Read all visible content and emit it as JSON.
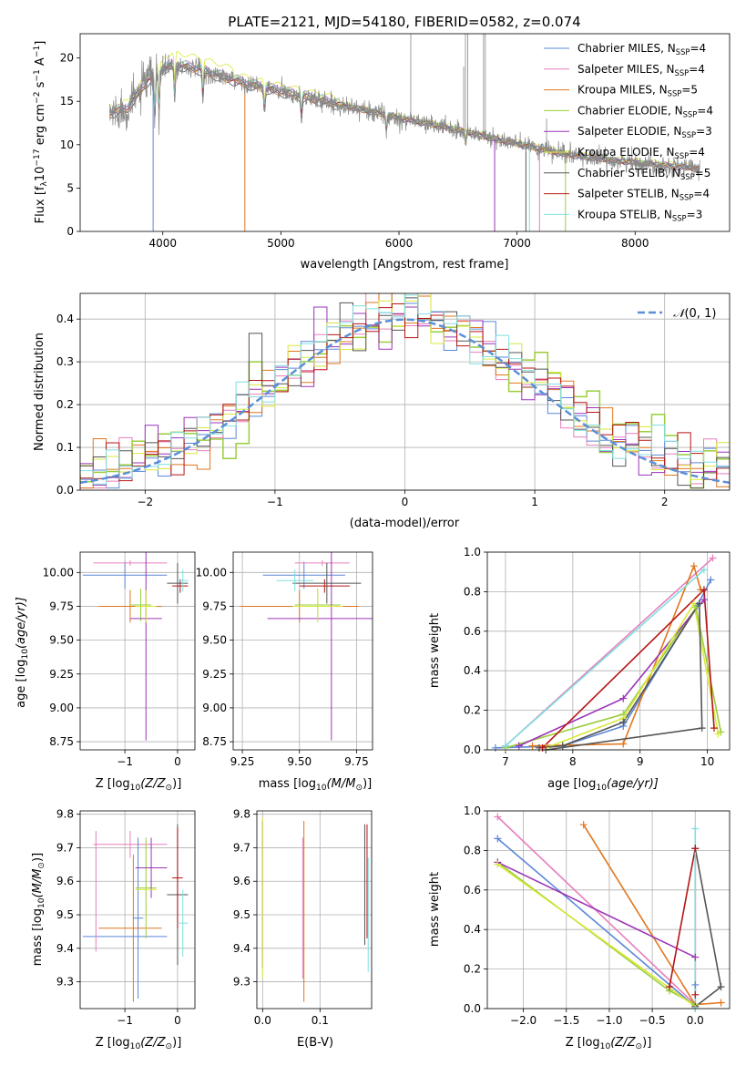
{
  "colors": {
    "Chabrier MILES": "#5a87d8",
    "Salpeter MILES": "#e77fbd",
    "Kroupa MILES": "#e0761f",
    "Chabrier ELODIE": "#9ace3c",
    "Salpeter ELODIE": "#9b34b8",
    "Kroupa ELODIE": "#d9e93a",
    "Chabrier STELIB": "#555555",
    "Salpeter STELIB": "#b81414",
    "Kroupa STELIB": "#80dfe0",
    "gauss": "#5b8fd8",
    "data_spectrum": "#888888"
  },
  "chart_data": [
    {
      "id": "spectrum",
      "type": "line",
      "title": "PLATE=2121, MJD=54180, FIBERID=0582, z=0.074",
      "xlabel": "wavelength [Angstrom, rest frame]",
      "ylabel_parts": [
        "Flux [f",
        "λ",
        "10",
        "−17",
        " erg cm",
        "−2",
        " s",
        "−1",
        " A",
        "−1",
        "]"
      ],
      "xlim": [
        3300,
        8800
      ],
      "ylim": [
        0,
        22.8
      ],
      "xticks": [
        4000,
        5000,
        6000,
        7000,
        8000
      ],
      "yticks": [
        0,
        5,
        10,
        15,
        20
      ],
      "grid": false,
      "legend_position": "upper right",
      "legend": [
        {
          "model": "Chabrier MILES",
          "n": "4"
        },
        {
          "model": "Salpeter MILES",
          "n": "4"
        },
        {
          "model": "Kroupa MILES",
          "n": "5"
        },
        {
          "model": "Chabrier ELODIE",
          "n": "4"
        },
        {
          "model": "Salpeter ELODIE",
          "n": "3"
        },
        {
          "model": "Kroupa ELODIE",
          "n": "4"
        },
        {
          "model": "Chabrier STELIB",
          "n": "5"
        },
        {
          "model": "Salpeter STELIB",
          "n": "4"
        },
        {
          "model": "Kroupa STELIB",
          "n": "3"
        }
      ],
      "legend_label_format": "N",
      "legend_label_sub": "SSP",
      "continuum": [
        [
          3550,
          13.6
        ],
        [
          3700,
          14.2
        ],
        [
          3850,
          17.0
        ],
        [
          3950,
          18.5
        ],
        [
          4100,
          19.2
        ],
        [
          4300,
          18.7
        ],
        [
          4500,
          17.8
        ],
        [
          4800,
          16.7
        ],
        [
          5100,
          15.8
        ],
        [
          5500,
          14.6
        ],
        [
          6000,
          13.1
        ],
        [
          6500,
          11.7
        ],
        [
          6800,
          10.7
        ],
        [
          7100,
          9.8
        ],
        [
          7400,
          8.9
        ],
        [
          7800,
          8.2
        ],
        [
          8200,
          7.7
        ],
        [
          8500,
          7.3
        ]
      ],
      "model_offsets": [
        0.3,
        0.5,
        -0.2,
        0.2,
        0.0,
        0.8,
        -0.4,
        0.1,
        0.4
      ],
      "absorption_dips": [
        [
          3933,
          6.0
        ],
        [
          3968,
          5.5
        ],
        [
          4101,
          4.5
        ],
        [
          4340,
          3.5
        ],
        [
          4861,
          3.0
        ],
        [
          5175,
          2.5
        ],
        [
          5893,
          2.0
        ],
        [
          6563,
          1.5
        ]
      ],
      "model_spikes": [
        [
          3918,
          2,
          0
        ],
        [
          4695,
          2,
          0
        ],
        [
          6810,
          5,
          0
        ],
        [
          7075,
          1,
          0
        ],
        [
          7105,
          8,
          0
        ],
        [
          7190,
          1,
          0
        ],
        [
          7410,
          2,
          0
        ]
      ],
      "data_emission": [
        [
          6100,
          22.8
        ],
        [
          6548,
          19.0
        ],
        [
          6563,
          22.8
        ],
        [
          6583,
          22.8
        ],
        [
          6716,
          22.8
        ],
        [
          6731,
          22.8
        ],
        [
          7250,
          13.0
        ]
      ],
      "spectrum_start": 3550,
      "spectrum_end": 8550
    },
    {
      "id": "residuals",
      "type": "line",
      "xlabel": "(data-model)/error",
      "ylabel": "Normed distribution",
      "xlim": [
        -2.5,
        2.5
      ],
      "ylim": [
        0,
        0.46
      ],
      "xticks": [
        -2,
        -1,
        0,
        1,
        2
      ],
      "yticks": [
        0.0,
        0.1,
        0.2,
        0.3,
        0.4
      ],
      "grid": true,
      "legend_position": "upper right",
      "gaussian_label": "N(0,1)",
      "bin_width": 0.1
    },
    {
      "id": "age_vs_Z",
      "type": "scatter",
      "xlabel_parts": [
        "Z [log",
        "10",
        "(Z/Z",
        "⊙",
        ")]"
      ],
      "ylabel_parts": [
        "age  [log",
        "10",
        "(age/yr)]"
      ],
      "xlim": [
        -1.85,
        0.33
      ],
      "ylim": [
        8.69,
        10.15
      ],
      "xticks": [
        -1,
        0
      ],
      "yticks": [
        8.75,
        9.0,
        9.25,
        9.5,
        9.75,
        10.0
      ],
      "grid": true,
      "points": [
        {
          "x": -1.0,
          "xerr": 0.8,
          "y": 9.98,
          "yerr": 0.1,
          "c": "Chabrier MILES"
        },
        {
          "x": -0.9,
          "xerr": 0.7,
          "y": 10.07,
          "yerr": 0.02,
          "c": "Salpeter MILES"
        },
        {
          "x": -0.9,
          "xerr": 0.6,
          "y": 9.75,
          "yerr": 0.12,
          "c": "Kroupa MILES"
        },
        {
          "x": -0.7,
          "xerr": 0.2,
          "y": 9.76,
          "yerr": 0.12,
          "c": "Chabrier ELODIE"
        },
        {
          "x": -0.6,
          "xerr": 0.3,
          "y": 9.66,
          "yerr": 0.9,
          "c": "Salpeter ELODIE"
        },
        {
          "x": -0.6,
          "xerr": 0.2,
          "y": 9.75,
          "yerr": 0.12,
          "c": "Kroupa ELODIE"
        },
        {
          "x": 0.0,
          "xerr": 0.2,
          "y": 9.92,
          "yerr": 0.15,
          "c": "Chabrier STELIB"
        },
        {
          "x": 0.05,
          "xerr": 0.15,
          "y": 9.9,
          "yerr": 0.05,
          "c": "Salpeter STELIB"
        },
        {
          "x": 0.1,
          "xerr": 0.1,
          "y": 9.94,
          "yerr": 0.08,
          "c": "Kroupa STELIB"
        }
      ]
    },
    {
      "id": "age_vs_mass",
      "type": "scatter",
      "xlabel_parts": [
        "mass [log",
        "10",
        "(M/M",
        "⊙",
        ")]"
      ],
      "xlim": [
        9.21,
        9.82
      ],
      "ylim": [
        8.69,
        10.15
      ],
      "xticks": [
        9.25,
        9.5,
        9.75
      ],
      "yticks": [
        8.75,
        9.0,
        9.25,
        9.5,
        9.75,
        10.0
      ],
      "grid": true,
      "points": [
        {
          "x": 9.52,
          "xerr": 0.18,
          "y": 9.98,
          "yerr": 0.1,
          "c": "Chabrier MILES"
        },
        {
          "x": 9.6,
          "xerr": 0.12,
          "y": 10.07,
          "yerr": 0.02,
          "c": "Salpeter MILES"
        },
        {
          "x": 9.5,
          "xerr": 0.26,
          "y": 9.75,
          "yerr": 0.12,
          "c": "Kroupa MILES"
        },
        {
          "x": 9.58,
          "xerr": 0.1,
          "y": 9.76,
          "yerr": 0.12,
          "c": "Chabrier ELODIE"
        },
        {
          "x": 9.64,
          "xerr": 0.28,
          "y": 9.66,
          "yerr": 0.9,
          "c": "Salpeter ELODIE"
        },
        {
          "x": 9.58,
          "xerr": 0.11,
          "y": 9.75,
          "yerr": 0.12,
          "c": "Kroupa ELODIE"
        },
        {
          "x": 9.62,
          "xerr": 0.15,
          "y": 9.92,
          "yerr": 0.15,
          "c": "Chabrier STELIB"
        },
        {
          "x": 9.61,
          "xerr": 0.11,
          "y": 9.9,
          "yerr": 0.05,
          "c": "Salpeter STELIB"
        },
        {
          "x": 9.48,
          "xerr": 0.08,
          "y": 9.94,
          "yerr": 0.08,
          "c": "Kroupa STELIB"
        }
      ]
    },
    {
      "id": "weight_vs_age",
      "type": "line",
      "xlabel_parts": [
        "age  [log",
        "10",
        "(age/yr)]"
      ],
      "ylabel": "mass weight",
      "xlim": [
        6.73,
        10.33
      ],
      "ylim": [
        0,
        1.0
      ],
      "xticks": [
        7,
        8,
        9,
        10
      ],
      "yticks": [
        0.0,
        0.2,
        0.4,
        0.6,
        0.8,
        1.0
      ],
      "grid": true,
      "series": [
        {
          "c": "Chabrier MILES",
          "points": [
            [
              6.85,
              0.01
            ],
            [
              7.85,
              0.02
            ],
            [
              8.75,
              0.12
            ],
            [
              9.85,
              0.73
            ],
            [
              10.05,
              0.86
            ]
          ]
        },
        {
          "c": "Salpeter MILES",
          "points": [
            [
              7.0,
              0.02
            ],
            [
              10.08,
              0.97
            ]
          ]
        },
        {
          "c": "Kroupa MILES",
          "points": [
            [
              7.4,
              0.02
            ],
            [
              8.75,
              0.03
            ],
            [
              9.8,
              0.93
            ],
            [
              9.9,
              0.81
            ]
          ]
        },
        {
          "c": "Chabrier ELODIE",
          "points": [
            [
              7.0,
              0.01
            ],
            [
              8.75,
              0.18
            ],
            [
              9.83,
              0.72
            ],
            [
              10.2,
              0.09
            ]
          ]
        },
        {
          "c": "Salpeter ELODIE",
          "points": [
            [
              7.2,
              0.02
            ],
            [
              8.75,
              0.26
            ],
            [
              9.95,
              0.76
            ]
          ]
        },
        {
          "c": "Kroupa ELODIE",
          "points": [
            [
              7.6,
              0.01
            ],
            [
              8.75,
              0.16
            ],
            [
              9.8,
              0.74
            ],
            [
              10.16,
              0.08
            ]
          ]
        },
        {
          "c": "Chabrier STELIB",
          "points": [
            [
              7.5,
              0.01
            ],
            [
              7.85,
              0.02
            ],
            [
              8.75,
              0.14
            ],
            [
              9.88,
              0.74
            ],
            [
              9.92,
              0.11
            ],
            [
              7.6,
              0.0
            ]
          ]
        },
        {
          "c": "Salpeter STELIB",
          "points": [
            [
              7.55,
              0.01
            ],
            [
              9.95,
              0.81
            ],
            [
              10.1,
              0.11
            ]
          ]
        },
        {
          "c": "Kroupa STELIB",
          "points": [
            [
              7.0,
              0.02
            ],
            [
              9.95,
              0.91
            ]
          ]
        }
      ]
    },
    {
      "id": "mass_vs_Z",
      "type": "scatter",
      "xlabel_parts": [
        "Z [log",
        "10",
        "(Z/Z",
        "⊙",
        ")]"
      ],
      "ylabel_parts": [
        "mass [log",
        "10",
        "(M/M",
        "⊙",
        ")]"
      ],
      "xlim": [
        -1.85,
        0.33
      ],
      "ylim": [
        9.22,
        9.81
      ],
      "xticks": [
        -1,
        0
      ],
      "yticks": [
        9.3,
        9.4,
        9.5,
        9.6,
        9.7,
        9.8
      ],
      "grid": true,
      "points": [
        {
          "x": -1.0,
          "xerr": 0.8,
          "y": 9.435,
          "yerr": 0.0,
          "c": "Chabrier MILES"
        },
        {
          "x": -0.9,
          "xerr": 0.7,
          "y": 9.71,
          "yerr": 0.04,
          "c": "Salpeter MILES"
        },
        {
          "x": -0.9,
          "xerr": 0.6,
          "y": 9.46,
          "yerr": 0.0,
          "c": "Kroupa MILES"
        },
        {
          "x": -0.75,
          "xerr": 0.1,
          "y": 9.49,
          "yerr": 0.24,
          "c": "Chabrier MILES"
        },
        {
          "x": -0.84,
          "xerr": 0.0,
          "y": 9.46,
          "yerr": 0.22,
          "c": "Kroupa MILES"
        },
        {
          "x": -1.55,
          "xerr": 0.0,
          "y": 9.57,
          "yerr": 0.18,
          "c": "Salpeter MILES"
        },
        {
          "x": -0.6,
          "xerr": 0.2,
          "y": 9.58,
          "yerr": 0.15,
          "c": "Chabrier ELODIE"
        },
        {
          "x": -0.5,
          "xerr": 0.3,
          "y": 9.64,
          "yerr": 0.09,
          "c": "Salpeter ELODIE"
        },
        {
          "x": -0.6,
          "xerr": 0.2,
          "y": 9.575,
          "yerr": 0.0,
          "c": "Kroupa ELODIE"
        },
        {
          "x": 0.0,
          "xerr": 0.2,
          "y": 9.56,
          "yerr": 0.21,
          "c": "Chabrier STELIB"
        },
        {
          "x": 0.0,
          "xerr": 0.1,
          "y": 9.61,
          "yerr": 0.15,
          "c": "Salpeter STELIB"
        },
        {
          "x": 0.1,
          "xerr": 0.1,
          "y": 9.475,
          "yerr": 0.1,
          "c": "Kroupa STELIB"
        }
      ]
    },
    {
      "id": "mass_vs_ebv",
      "type": "scatter",
      "xlabel": "E(B-V)",
      "xlim": [
        -0.01,
        0.19
      ],
      "ylim": [
        9.22,
        9.81
      ],
      "xticks": [
        0.0,
        0.1
      ],
      "yticks": [
        9.3,
        9.4,
        9.5,
        9.6,
        9.7,
        9.8
      ],
      "grid": true,
      "points": [
        {
          "x": 0.0,
          "xerr": 0,
          "y": 9.56,
          "yerr": 0.22,
          "c": "Salpeter ELODIE"
        },
        {
          "x": 0.0,
          "xerr": 0,
          "y": 9.55,
          "yerr": 0.24,
          "c": "Kroupa ELODIE"
        },
        {
          "x": 0.07,
          "xerr": 0,
          "y": 9.52,
          "yerr": 0.21,
          "c": "Salpeter MILES"
        },
        {
          "x": 0.072,
          "xerr": 0,
          "y": 9.51,
          "yerr": 0.27,
          "c": "Kroupa MILES"
        },
        {
          "x": 0.178,
          "xerr": 0,
          "y": 9.59,
          "yerr": 0.18,
          "c": "Chabrier STELIB"
        },
        {
          "x": 0.182,
          "xerr": 0,
          "y": 9.6,
          "yerr": 0.17,
          "c": "Salpeter STELIB"
        },
        {
          "x": 0.184,
          "xerr": 0,
          "y": 9.5,
          "yerr": 0.17,
          "c": "Kroupa STELIB"
        }
      ]
    },
    {
      "id": "weight_vs_Z",
      "type": "line",
      "xlabel_parts": [
        "Z [log",
        "10",
        "(Z/Z",
        "⊙",
        ")]"
      ],
      "ylabel": "mass weight",
      "xlim": [
        -2.42,
        0.4
      ],
      "ylim": [
        0,
        1.0
      ],
      "xticks": [
        -2.0,
        -1.5,
        -1.0,
        -0.5,
        0.0
      ],
      "yticks": [
        0.0,
        0.2,
        0.4,
        0.6,
        0.8,
        1.0
      ],
      "grid": true,
      "series": [
        {
          "c": "Chabrier MILES",
          "points": [
            [
              -2.3,
              0.86
            ],
            [
              0.0,
              0.01
            ],
            [
              0.0,
              0.12
            ]
          ]
        },
        {
          "c": "Salpeter MILES",
          "points": [
            [
              -2.3,
              0.97
            ],
            [
              0.0,
              0.02
            ]
          ]
        },
        {
          "c": "Kroupa MILES",
          "points": [
            [
              -1.3,
              0.93
            ],
            [
              0.0,
              0.02
            ],
            [
              0.3,
              0.03
            ]
          ]
        },
        {
          "c": "Chabrier ELODIE",
          "points": [
            [
              -2.3,
              0.74
            ],
            [
              -0.3,
              0.09
            ],
            [
              0.0,
              0.02
            ]
          ]
        },
        {
          "c": "Salpeter ELODIE",
          "points": [
            [
              -2.3,
              0.74
            ],
            [
              0.0,
              0.26
            ]
          ]
        },
        {
          "c": "Kroupa ELODIE",
          "points": [
            [
              -2.3,
              0.73
            ],
            [
              0.0,
              0.01
            ]
          ]
        },
        {
          "c": "Chabrier STELIB",
          "points": [
            [
              0.0,
              0.01
            ],
            [
              0.3,
              0.11
            ],
            [
              0.0,
              0.81
            ]
          ]
        },
        {
          "c": "Salpeter STELIB",
          "points": [
            [
              -0.3,
              0.11
            ],
            [
              0.0,
              0.81
            ],
            [
              0.0,
              0.07
            ]
          ]
        },
        {
          "c": "Kroupa STELIB",
          "points": [
            [
              0.0,
              0.91
            ],
            [
              0.0,
              0.0
            ]
          ]
        }
      ]
    }
  ]
}
